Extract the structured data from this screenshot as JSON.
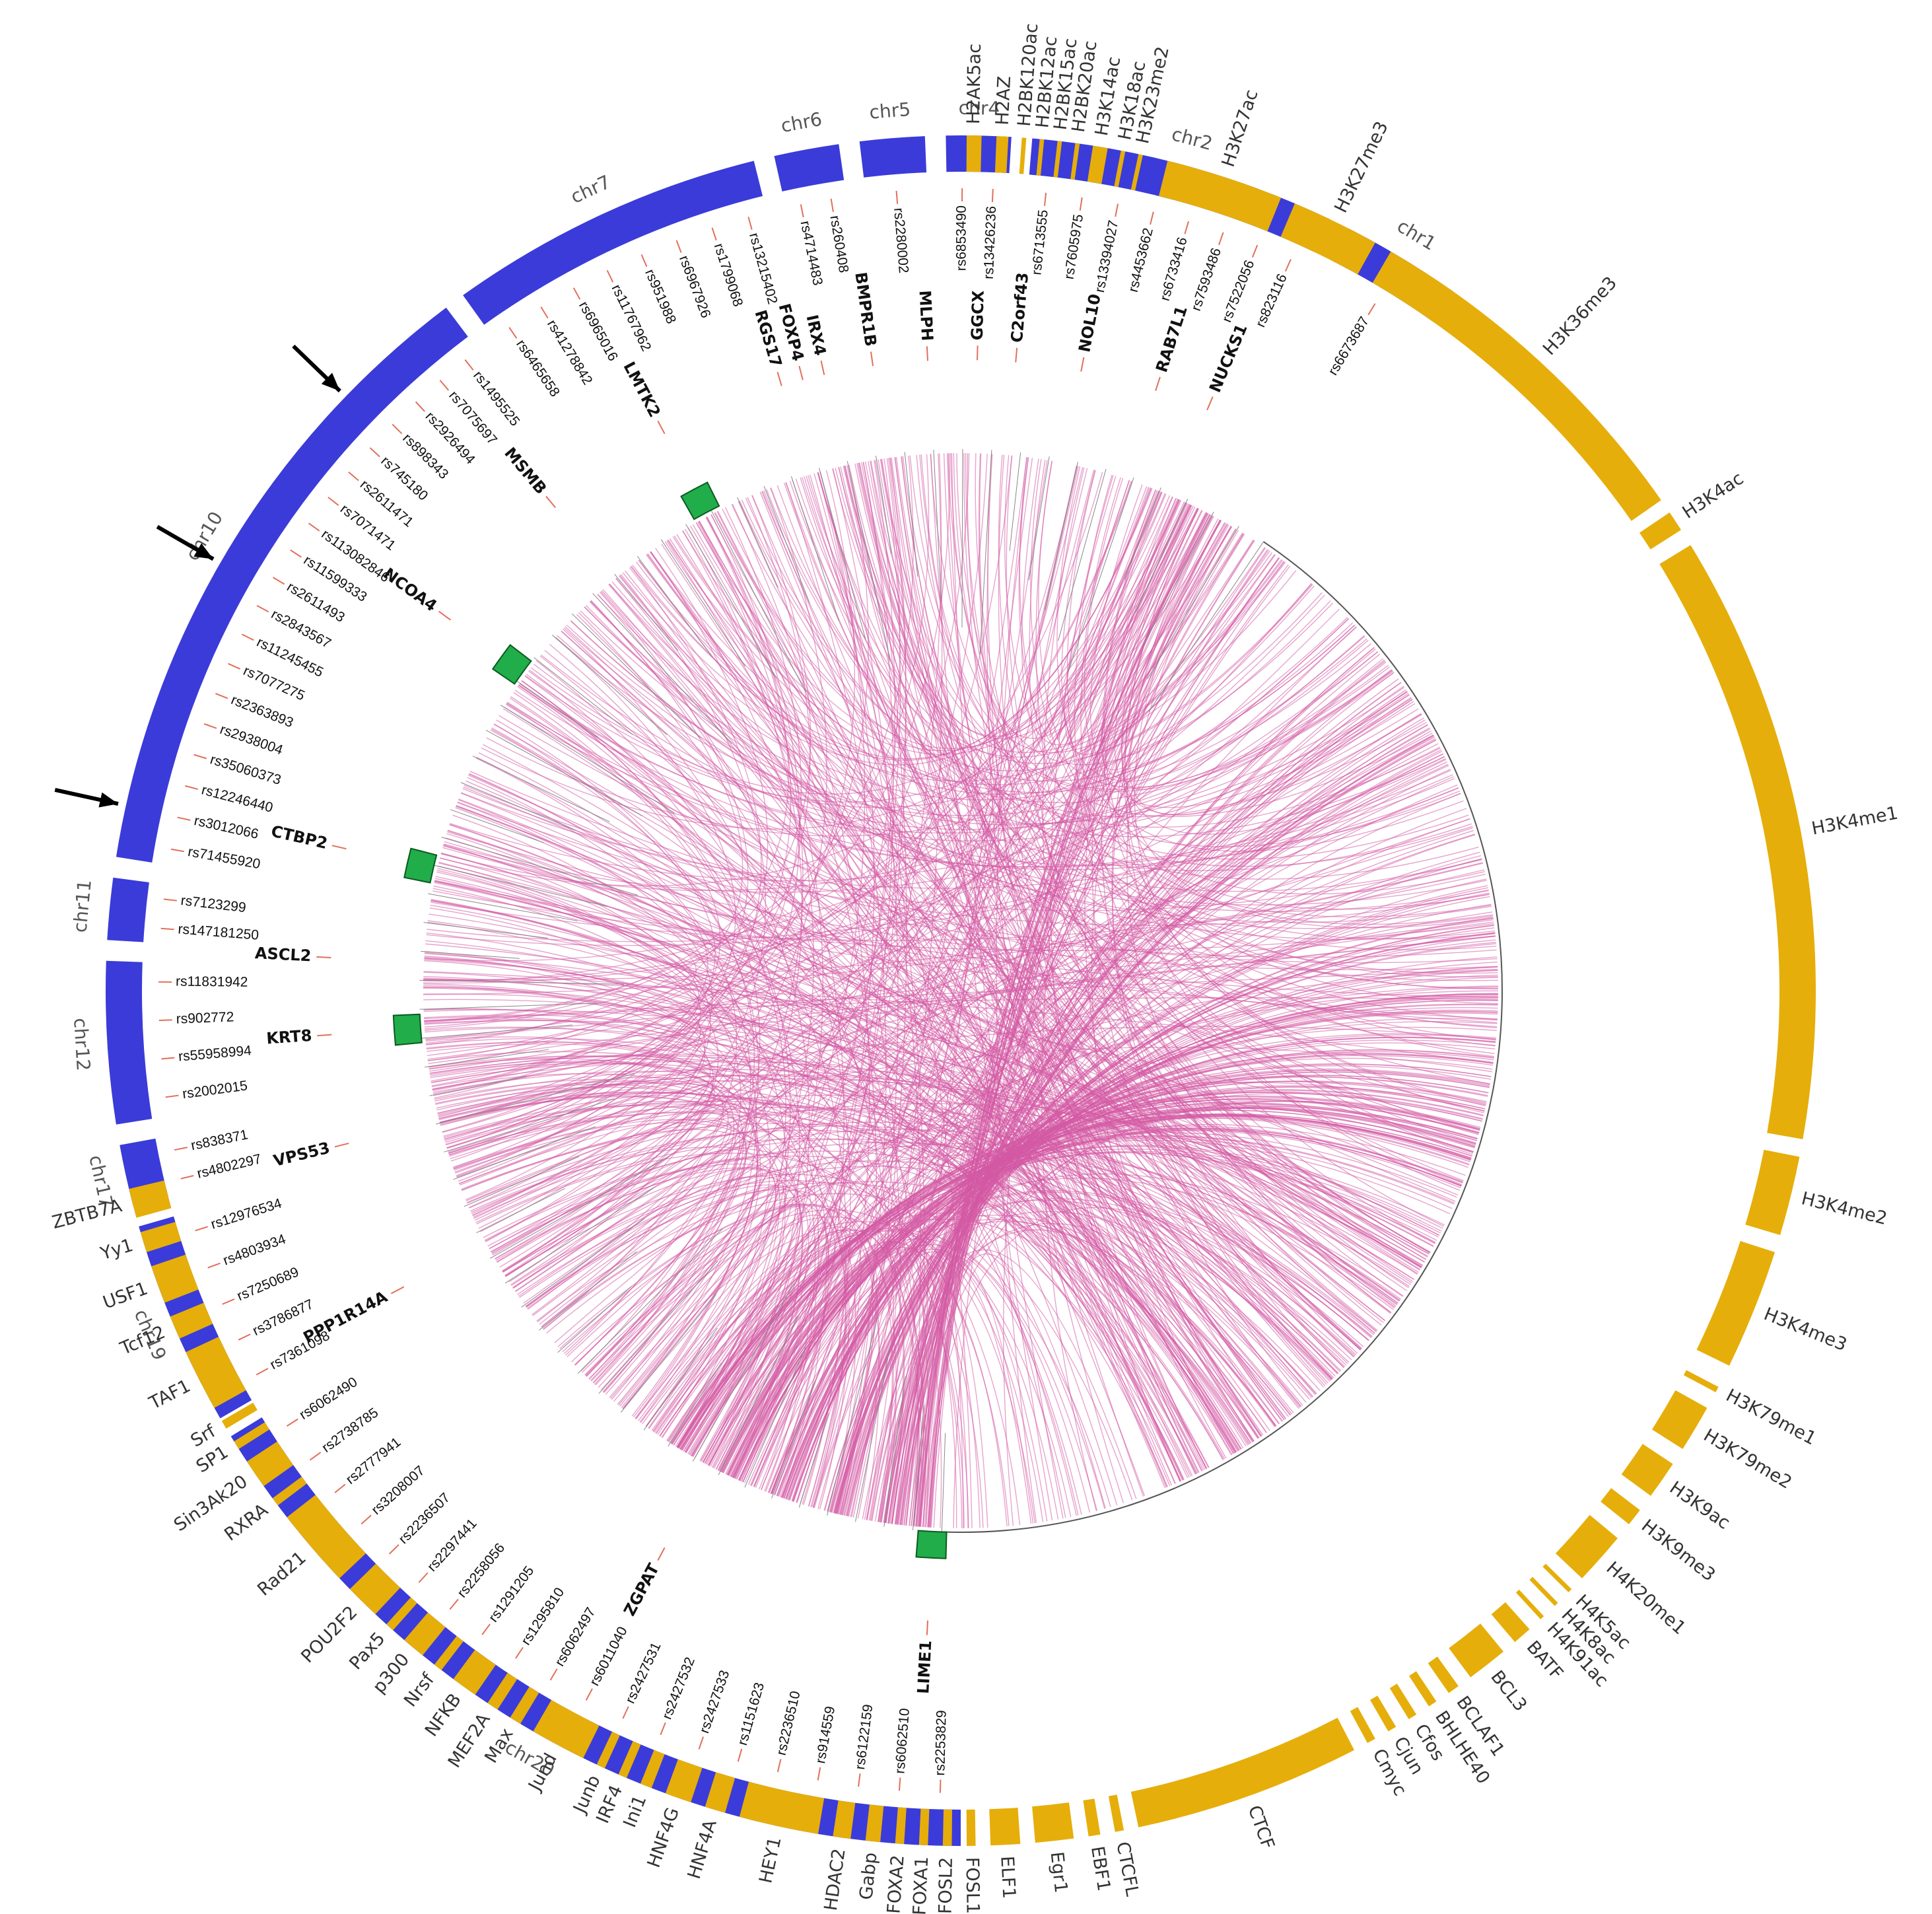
{
  "colors": {
    "chromosome": "#3b3bd9",
    "mark": "#e6ae0a",
    "gene_box": "#21ad4a",
    "ribbon": "#d35aa4",
    "snp_tick": "#e0705a"
  },
  "chromosomes": [
    {
      "label": "chr20",
      "start": 180,
      "end": 238.6
    },
    {
      "label": "chr19",
      "start": 240.0,
      "end": 254.0
    },
    {
      "label": "chr17",
      "start": 255.4,
      "end": 259.6
    },
    {
      "label": "chr12",
      "start": 261.0,
      "end": 272.0
    },
    {
      "label": "chr11",
      "start": 273.4,
      "end": 277.6
    },
    {
      "label": "chr10",
      "start": 279.0,
      "end": 323.0
    },
    {
      "label": "chr7",
      "start": 324.4,
      "end": 346.0
    },
    {
      "label": "chr6",
      "start": 347.4,
      "end": 351.8
    },
    {
      "label": "chr5",
      "start": 353.2,
      "end": 357.6
    },
    {
      "label": "chr4",
      "start": 359.0,
      "end": 363.4
    },
    {
      "label": "chr2",
      "start": 364.8,
      "end": 385.6
    },
    {
      "label": "chr1",
      "start": 387.0,
      "end": 395.2
    }
  ],
  "snps": {
    "chr20": [
      "rs2253829",
      "rs6062510",
      "rs6122159",
      "rs914559",
      "rs2236510",
      "rs1151623",
      "rs2427533",
      "rs2427532",
      "rs2427531",
      "rs6011040",
      "rs6062497",
      "rs1295810",
      "rs1291205",
      "rs2258056",
      "rs2297441",
      "rs2236507",
      "rs3208007",
      "rs2777941",
      "rs2738785",
      "rs6062490"
    ],
    "chr19": [
      "rs7361098",
      "rs3786877",
      "rs7250689",
      "rs4803934",
      "rs12976534"
    ],
    "chr17": [
      "rs4802297",
      "rs838371"
    ],
    "chr12": [
      "rs2002015",
      "rs55958994",
      "rs902772",
      "rs11831942"
    ],
    "chr11": [
      "rs147181250",
      "rs7123299"
    ],
    "chr10": [
      "rs71455920",
      "rs3012066",
      "rs12246440",
      "rs35060373",
      "rs2938004",
      "rs2363893",
      "rs7077275",
      "rs11245455",
      "rs2843567",
      "rs2611493",
      "rs11599333",
      "rs113082846",
      "rs7071471",
      "rs2611471",
      "rs745180",
      "rs898343",
      "rs2926494",
      "rs7075697",
      "rs1495525"
    ],
    "chr7": [
      "rs6465658",
      "rs41278842",
      "rs6965016",
      "rs11767962",
      "rs951988",
      "rs6967926",
      "rs1799068",
      "rs13215402"
    ],
    "chr6": [
      "rs4714483",
      "rs260408"
    ],
    "chr5": [
      "rs2280002"
    ],
    "chr4": [
      "rs6853490",
      "rs13426236"
    ],
    "chr2": [
      "rs6713555",
      "rs7605975",
      "rs13394027",
      "rs4453662",
      "rs6733416",
      "rs7593486",
      "rs7522056",
      "rs823116"
    ],
    "chr1": [
      "rs6673687"
    ]
  },
  "genes": [
    {
      "label": "LIME1",
      "angle": 183.0,
      "box": true
    },
    {
      "label": "ZGPAT",
      "angle": 208.0,
      "box": false
    },
    {
      "label": "PPP1R14A",
      "angle": 242.0,
      "box": false
    },
    {
      "label": "VPS53",
      "angle": 256.0,
      "box": false
    },
    {
      "label": "KRT8",
      "angle": 266.0,
      "box": true
    },
    {
      "label": "ASCL2",
      "angle": 273.0,
      "box": false
    },
    {
      "label": "CTBP2",
      "angle": 283.0,
      "box": true
    },
    {
      "label": "NCOA4",
      "angle": 306.0,
      "box": true
    },
    {
      "label": "MSMB",
      "angle": 320.0,
      "box": false
    },
    {
      "label": "LMTK2",
      "angle": 332.0,
      "box": true
    },
    {
      "label": "RGS17",
      "angle": 343.5,
      "box": false
    },
    {
      "label": "FOXP4",
      "angle": 345.5,
      "box": false
    },
    {
      "label": "IRX4",
      "angle": 347.5,
      "box": false
    },
    {
      "label": "BMPR1B",
      "angle": 352.0,
      "box": false
    },
    {
      "label": "MLPH",
      "angle": 357.0,
      "box": false
    },
    {
      "label": "GGCX",
      "angle": 361.5,
      "box": false
    },
    {
      "label": "C2orf43",
      "angle": 365.0,
      "box": false
    },
    {
      "label": "NOL10",
      "angle": 371.0,
      "box": false
    },
    {
      "label": "RAB7L1",
      "angle": 378.0,
      "box": false
    },
    {
      "label": "NUCKS1",
      "angle": 383.0,
      "box": false
    }
  ],
  "marks": [
    {
      "label": "H2AK5ac",
      "start": 0.4,
      "end": 1.4
    },
    {
      "label": "H2AZ",
      "start": 2.4,
      "end": 3.2
    },
    {
      "label": "H2BK120ac",
      "start": 4.1,
      "end": 4.4
    },
    {
      "label": "H2BK12ac",
      "start": 5.3,
      "end": 5.6
    },
    {
      "label": "H2BK15ac",
      "start": 6.5,
      "end": 6.8
    },
    {
      "label": "H2BK20ac",
      "start": 7.7,
      "end": 8.0
    },
    {
      "label": "H3K14ac",
      "start": 8.9,
      "end": 9.9
    },
    {
      "label": "H3K18ac",
      "start": 10.8,
      "end": 11.1
    },
    {
      "label": "H3K23me2",
      "start": 12.0,
      "end": 12.3
    },
    {
      "label": "H3K27ac",
      "start": 14.0,
      "end": 22.0
    },
    {
      "label": "H3K27me3",
      "start": 23.0,
      "end": 29.0
    },
    {
      "label": "H3K36me3",
      "start": 30.2,
      "end": 55.0
    },
    {
      "label": "H3K4ac",
      "start": 56.0,
      "end": 57.4
    },
    {
      "label": "H3K4me1",
      "start": 58.6,
      "end": 100.0
    },
    {
      "label": "H3K4me2",
      "start": 101.2,
      "end": 106.6
    },
    {
      "label": "H3K4me3",
      "start": 107.8,
      "end": 116.0
    },
    {
      "label": "H3K79me1",
      "start": 117.6,
      "end": 118.0
    },
    {
      "label": "H3K79me2",
      "start": 119.2,
      "end": 122.4
    },
    {
      "label": "H3K9ac",
      "start": 123.6,
      "end": 126.2
    },
    {
      "label": "H3K9me3",
      "start": 127.4,
      "end": 128.6
    },
    {
      "label": "H4K20me1",
      "start": 129.8,
      "end": 133.4
    },
    {
      "label": "H4K5ac",
      "start": 134.4,
      "end": 134.7
    },
    {
      "label": "H4K8ac",
      "start": 135.7,
      "end": 136.0
    },
    {
      "label": "H4K91ac",
      "start": 137.0,
      "end": 137.3
    },
    {
      "label": "BATF",
      "start": 138.3,
      "end": 139.6
    },
    {
      "label": "BCL3",
      "start": 140.6,
      "end": 143.4
    },
    {
      "label": "BCLAF1",
      "start": 144.4,
      "end": 145.2
    },
    {
      "label": "BHLHE40",
      "start": 146.2,
      "end": 146.8
    },
    {
      "label": "Cfos",
      "start": 147.8,
      "end": 148.4
    },
    {
      "label": "Cjun",
      "start": 149.4,
      "end": 150.0
    },
    {
      "label": "Cmyc",
      "start": 151.0,
      "end": 151.6
    },
    {
      "label": "CTCF",
      "start": 152.6,
      "end": 168.0
    },
    {
      "label": "CTCFL",
      "start": 169.0,
      "end": 169.6
    },
    {
      "label": "EBF1",
      "start": 170.6,
      "end": 171.4
    },
    {
      "label": "Egr1",
      "start": 172.4,
      "end": 175.0
    },
    {
      "label": "ELF1",
      "start": 176.0,
      "end": 178.0
    },
    {
      "label": "FOSL1",
      "start": 179.0,
      "end": 179.6
    },
    {
      "label": "FOSL2",
      "start": 180.6,
      "end": 181.2
    },
    {
      "label": "FOXA1",
      "start": 182.2,
      "end": 182.8
    },
    {
      "label": "FOXA2",
      "start": 183.8,
      "end": 184.4
    },
    {
      "label": "Gabp",
      "start": 185.4,
      "end": 186.4
    },
    {
      "label": "HDAC2",
      "start": 187.4,
      "end": 188.6
    },
    {
      "label": "HEY1",
      "start": 189.6,
      "end": 195.0
    },
    {
      "label": "HNF4A",
      "start": 196.0,
      "end": 197.4
    },
    {
      "label": "HNF4G",
      "start": 198.4,
      "end": 200.2
    },
    {
      "label": "Ini1",
      "start": 201.2,
      "end": 202.0
    },
    {
      "label": "IRF4",
      "start": 203.0,
      "end": 203.6
    },
    {
      "label": "Junb",
      "start": 204.6,
      "end": 205.2
    },
    {
      "label": "Jund",
      "start": 206.2,
      "end": 210.0
    },
    {
      "label": "Max",
      "start": 211.0,
      "end": 211.8
    },
    {
      "label": "MEF2A",
      "start": 212.8,
      "end": 213.6
    },
    {
      "label": "NFKB",
      "start": 214.6,
      "end": 216.4
    },
    {
      "label": "Nrsf",
      "start": 217.4,
      "end": 218.0
    },
    {
      "label": "p300",
      "start": 219.0,
      "end": 220.6
    },
    {
      "label": "Pax5",
      "start": 221.6,
      "end": 222.2
    },
    {
      "label": "POU2F2",
      "start": 223.2,
      "end": 225.6
    },
    {
      "label": "Rad21",
      "start": 226.6,
      "end": 232.0
    },
    {
      "label": "RXRA",
      "start": 233.0,
      "end": 233.6
    },
    {
      "label": "Sin3Ak20",
      "start": 234.6,
      "end": 236.6
    },
    {
      "label": "SP1",
      "start": 237.6,
      "end": 238.2
    },
    {
      "label": "Srf",
      "start": 239.2,
      "end": 239.8
    },
    {
      "label": "TAF1",
      "start": 240.8,
      "end": 245.0
    },
    {
      "label": "Tcf12",
      "start": 246.0,
      "end": 247.6
    },
    {
      "label": "USF1",
      "start": 248.6,
      "end": 251.2
    },
    {
      "label": "Yy1",
      "start": 252.2,
      "end": 253.6
    },
    {
      "label": "ZBTB7A",
      "start": 254.6,
      "end": 256.6
    }
  ],
  "arrows_chr10_at_degrees": [
    282.5,
    300.0,
    314.0
  ]
}
